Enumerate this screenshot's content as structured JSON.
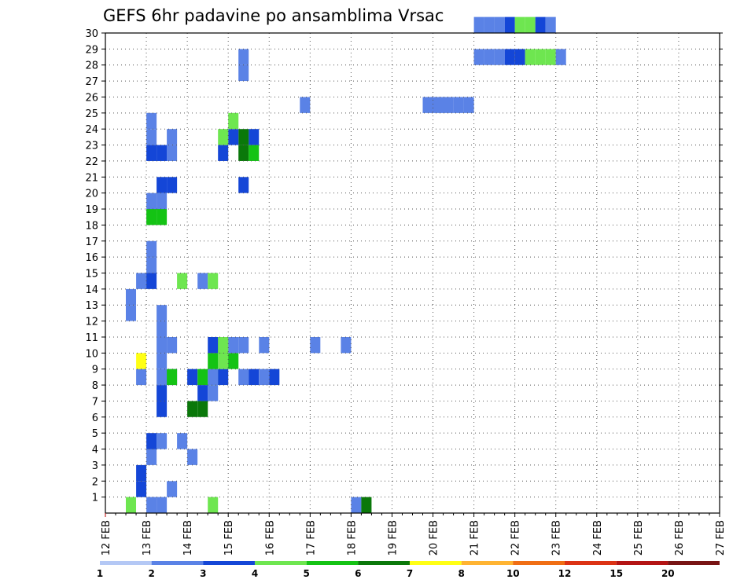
{
  "chart_data": {
    "type": "heatmap",
    "title": "GEFS 6hr padavine po ansamblima Vrsac",
    "xlabel": "",
    "ylabel": "",
    "x_ticks": [
      "12 FEB",
      "13 FEB",
      "14 FEB",
      "15 FEB",
      "16 FEB",
      "17 FEB",
      "18 FEB",
      "19 FEB",
      "20 FEB",
      "21 FEB",
      "22 FEB",
      "23 FEB",
      "24 FEB",
      "25 FEB",
      "26 FEB",
      "27 FEB"
    ],
    "y_ticks": [
      1,
      2,
      3,
      4,
      5,
      6,
      7,
      8,
      9,
      10,
      11,
      12,
      13,
      14,
      15,
      16,
      17,
      18,
      19,
      20,
      21,
      22,
      23,
      24,
      25,
      26,
      27,
      28,
      29,
      30
    ],
    "x_range": [
      0,
      60
    ],
    "y_range": [
      0,
      30
    ],
    "grid": true,
    "colorbar": {
      "labels": [
        "1",
        "2",
        "3",
        "4",
        "5",
        "6",
        "7",
        "8",
        "10",
        "12",
        "15",
        "20"
      ],
      "colors": [
        "#b4c8f5",
        "#5a82e6",
        "#1446d7",
        "#6ee650",
        "#14c314",
        "#0a780a",
        "#ffff14",
        "#ffb432",
        "#f06e14",
        "#dc3214",
        "#b41414",
        "#781414"
      ]
    },
    "cells": [
      [
        2,
        0,
        3
      ],
      [
        4,
        0,
        1
      ],
      [
        5,
        0,
        1
      ],
      [
        10,
        0,
        3
      ],
      [
        24,
        0,
        1
      ],
      [
        25,
        0,
        5
      ],
      [
        3,
        1,
        2
      ],
      [
        3,
        2,
        2
      ],
      [
        6,
        1,
        1
      ],
      [
        8,
        3,
        1
      ],
      [
        4,
        3,
        1
      ],
      [
        4,
        4,
        2
      ],
      [
        5,
        4,
        1
      ],
      [
        7,
        4,
        1
      ],
      [
        5,
        6,
        2
      ],
      [
        5,
        7,
        2
      ],
      [
        8,
        6,
        5
      ],
      [
        9,
        6,
        5
      ],
      [
        9,
        7,
        2
      ],
      [
        10,
        7,
        1
      ],
      [
        10,
        8,
        3
      ],
      [
        3,
        8,
        1
      ],
      [
        5,
        8,
        1
      ],
      [
        6,
        8,
        1
      ],
      [
        13,
        8,
        1
      ],
      [
        14,
        8,
        2
      ],
      [
        15,
        8,
        1
      ],
      [
        16,
        8,
        2
      ],
      [
        6,
        8,
        4
      ],
      [
        8,
        8,
        2
      ],
      [
        9,
        8,
        4
      ],
      [
        10,
        8,
        1
      ],
      [
        11,
        8,
        2
      ],
      [
        11,
        9,
        1
      ],
      [
        3,
        9,
        6
      ],
      [
        5,
        9,
        1
      ],
      [
        5,
        10,
        1
      ],
      [
        10,
        9,
        4
      ],
      [
        10,
        10,
        2
      ],
      [
        11,
        9,
        3
      ],
      [
        11,
        10,
        5
      ],
      [
        12,
        9,
        4
      ],
      [
        12,
        10,
        1
      ],
      [
        6,
        10,
        1
      ],
      [
        5,
        11,
        1
      ],
      [
        5,
        12,
        1
      ],
      [
        11,
        10,
        3
      ],
      [
        13,
        10,
        1
      ],
      [
        15,
        10,
        1
      ],
      [
        20,
        10,
        1
      ],
      [
        23,
        10,
        1
      ],
      [
        2,
        13,
        1
      ],
      [
        2,
        12,
        1
      ],
      [
        3,
        14,
        1
      ],
      [
        4,
        14,
        2
      ],
      [
        7,
        14,
        3
      ],
      [
        9,
        14,
        1
      ],
      [
        10,
        14,
        3
      ],
      [
        4,
        15,
        1
      ],
      [
        4,
        16,
        1
      ],
      [
        4,
        18,
        4
      ],
      [
        4,
        19,
        1
      ],
      [
        5,
        18,
        4
      ],
      [
        5,
        19,
        1
      ],
      [
        5,
        20,
        2
      ],
      [
        6,
        20,
        2
      ],
      [
        13,
        20,
        2
      ],
      [
        6,
        22,
        1
      ],
      [
        6,
        23,
        1
      ],
      [
        4,
        22,
        2
      ],
      [
        4,
        23,
        1
      ],
      [
        5,
        22,
        2
      ],
      [
        4,
        24,
        1
      ],
      [
        13,
        22,
        5
      ],
      [
        14,
        22,
        4
      ],
      [
        14,
        23,
        2
      ],
      [
        13,
        23,
        5
      ],
      [
        12,
        23,
        2
      ],
      [
        12,
        24,
        3
      ],
      [
        11,
        22,
        2
      ],
      [
        11,
        23,
        3
      ],
      [
        13,
        27,
        1
      ],
      [
        13,
        28,
        1
      ],
      [
        19,
        25,
        1
      ],
      [
        31,
        25,
        1
      ],
      [
        32,
        25,
        1
      ],
      [
        33,
        25,
        1
      ],
      [
        34,
        25,
        1
      ],
      [
        35,
        25,
        1
      ],
      [
        36,
        28,
        1
      ],
      [
        37,
        28,
        1
      ],
      [
        38,
        28,
        1
      ],
      [
        39,
        28,
        2
      ],
      [
        40,
        28,
        2
      ],
      [
        41,
        28,
        3
      ],
      [
        42,
        28,
        3
      ],
      [
        43,
        28,
        3
      ],
      [
        44,
        28,
        1
      ],
      [
        36,
        30,
        1
      ],
      [
        37,
        30,
        1
      ],
      [
        38,
        30,
        1
      ],
      [
        39,
        30,
        2
      ],
      [
        40,
        30,
        3
      ],
      [
        41,
        30,
        3
      ],
      [
        42,
        30,
        2
      ],
      [
        43,
        30,
        1
      ]
    ],
    "note_series": []
  }
}
